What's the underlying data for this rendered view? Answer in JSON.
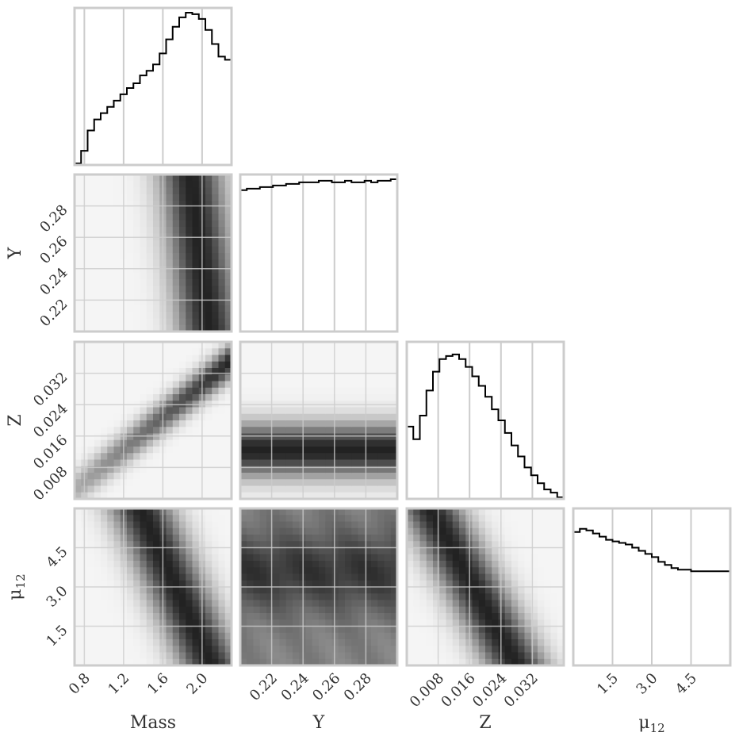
{
  "chart_data": {
    "type": "corner",
    "parameters": [
      {
        "key": "mass",
        "label": "Mass",
        "range": [
          0.7,
          2.3
        ],
        "ticks": [
          "0.8",
          "1.2",
          "1.6",
          "2.0"
        ],
        "tick_values": [
          0.8,
          1.2,
          1.6,
          2.0
        ]
      },
      {
        "key": "Y",
        "label": "Y",
        "range": [
          0.2,
          0.3
        ],
        "ticks": [
          "0.22",
          "0.24",
          "0.26",
          "0.28"
        ],
        "tick_values": [
          0.22,
          0.24,
          0.26,
          0.28
        ]
      },
      {
        "key": "Z",
        "label": "Z",
        "range": [
          0.0,
          0.04
        ],
        "ticks": [
          "0.008",
          "0.016",
          "0.024",
          "0.032"
        ],
        "tick_values": [
          0.008,
          0.016,
          0.024,
          0.032
        ]
      },
      {
        "key": "mu12",
        "label": "μ",
        "label_sub": "12",
        "range": [
          0.0,
          6.0
        ],
        "ticks": [
          "1.5",
          "3.0",
          "4.5"
        ],
        "tick_values": [
          1.5,
          3.0,
          4.5
        ]
      }
    ],
    "histograms": [
      {
        "param": "mass",
        "bins": 24,
        "counts": [
          0.01,
          0.09,
          0.22,
          0.29,
          0.33,
          0.37,
          0.41,
          0.45,
          0.49,
          0.52,
          0.57,
          0.6,
          0.64,
          0.71,
          0.8,
          0.88,
          0.94,
          0.97,
          0.96,
          0.93,
          0.86,
          0.77,
          0.69,
          0.67
        ]
      },
      {
        "param": "Y",
        "bins": 24,
        "counts": [
          0.9,
          0.91,
          0.91,
          0.92,
          0.92,
          0.93,
          0.93,
          0.94,
          0.94,
          0.95,
          0.95,
          0.95,
          0.96,
          0.96,
          0.95,
          0.95,
          0.96,
          0.95,
          0.95,
          0.96,
          0.95,
          0.96,
          0.96,
          0.97
        ]
      },
      {
        "param": "Z",
        "bins": 24,
        "counts": [
          0.46,
          0.38,
          0.53,
          0.69,
          0.81,
          0.89,
          0.91,
          0.92,
          0.89,
          0.84,
          0.78,
          0.72,
          0.65,
          0.57,
          0.5,
          0.42,
          0.34,
          0.27,
          0.2,
          0.15,
          0.1,
          0.06,
          0.04,
          0.01
        ]
      },
      {
        "param": "mu12",
        "bins": 24,
        "counts": [
          0.85,
          0.87,
          0.86,
          0.84,
          0.82,
          0.8,
          0.79,
          0.78,
          0.77,
          0.75,
          0.73,
          0.71,
          0.69,
          0.66,
          0.64,
          0.62,
          0.61,
          0.61,
          0.6,
          0.6,
          0.6,
          0.6,
          0.6,
          0.6
        ]
      }
    ],
    "pairs": [
      {
        "x": "mass",
        "y": "Y"
      },
      {
        "x": "mass",
        "y": "Z"
      },
      {
        "x": "Y",
        "y": "Z"
      },
      {
        "x": "mass",
        "y": "mu12"
      },
      {
        "x": "Y",
        "y": "mu12"
      },
      {
        "x": "Z",
        "y": "mu12"
      }
    ],
    "style": {
      "grid": true,
      "gridcolor": "#cccccc",
      "line": "#000000",
      "frame": "#cccccc",
      "dark": "#222222",
      "light": "#f5f5f5"
    }
  }
}
